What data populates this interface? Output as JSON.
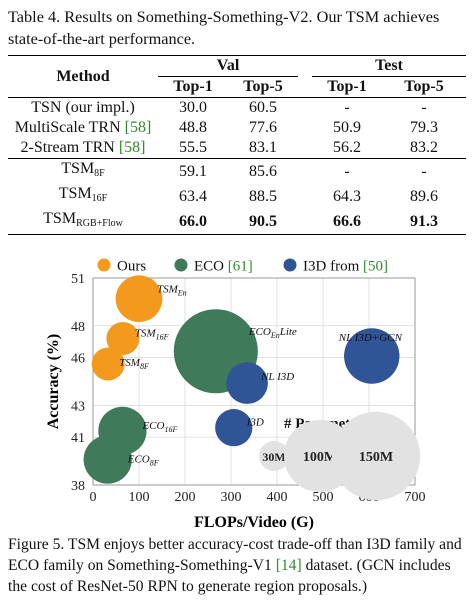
{
  "table": {
    "caption_parts": [
      "Table 4. Results on Something-Something-V2. Our TSM achieves state-of-the-art performance."
    ],
    "headers": {
      "method": "Method",
      "val": "Val",
      "test": "Test",
      "top1": "Top-1",
      "top5": "Top-5"
    },
    "rows": [
      {
        "method": "TSN (our impl.)",
        "ref": "",
        "val1": "30.0",
        "val5": "60.5",
        "test1": "-",
        "test5": "-"
      },
      {
        "method": "MultiScale TRN ",
        "ref": "[58]",
        "val1": "48.8",
        "val5": "77.6",
        "test1": "50.9",
        "test5": "79.3"
      },
      {
        "method": "2-Stream TRN ",
        "ref": "[58]",
        "val1": "55.5",
        "val5": "83.1",
        "test1": "56.2",
        "test5": "83.2"
      },
      {
        "method": "TSM",
        "sub": "8F",
        "val1": "59.1",
        "val5": "85.6",
        "test1": "-",
        "test5": "-"
      },
      {
        "method": "TSM",
        "sub": "16F",
        "val1": "63.4",
        "val5": "88.5",
        "test1": "64.3",
        "test5": "89.6"
      },
      {
        "method": "TSM",
        "sub": "RGB+Flow",
        "val1": "66.0",
        "val5": "90.5",
        "test1": "66.6",
        "test5": "91.3"
      }
    ]
  },
  "chart_data": {
    "type": "scatter",
    "xlabel": "FLOPs/Video (G)",
    "ylabel": "Accuracy (%)",
    "xlim": [
      0,
      700
    ],
    "ylim": [
      38,
      51
    ],
    "xticks": [
      0,
      100,
      200,
      300,
      400,
      500,
      600,
      700
    ],
    "yticks": [
      38,
      41,
      43,
      46,
      48,
      51
    ],
    "grid": true,
    "legend": [
      {
        "name": "Ours",
        "ref": "",
        "color": "#f39a1e"
      },
      {
        "name": "ECO ",
        "ref": "[61]",
        "color": "#3f7a5a"
      },
      {
        "name": "I3D from ",
        "ref": "[50]",
        "color": "#2f5597"
      }
    ],
    "points": [
      {
        "label": "TSM",
        "label_sub": "En",
        "x": 100,
        "y": 49.7,
        "params": 44,
        "group": "Ours"
      },
      {
        "label": "TSM",
        "label_sub": "16F",
        "x": 65,
        "y": 47.2,
        "params": 22,
        "group": "Ours"
      },
      {
        "label": "TSM",
        "label_sub": "8F",
        "x": 33,
        "y": 45.6,
        "params": 22,
        "group": "Ours"
      },
      {
        "label": "ECO",
        "label_sub": "En",
        "label_suffix": "Lite",
        "x": 267,
        "y": 46.4,
        "params": 150,
        "group": "ECO"
      },
      {
        "label": "ECO",
        "label_sub": "16F",
        "x": 64,
        "y": 41.4,
        "params": 47,
        "group": "ECO"
      },
      {
        "label": "ECO",
        "label_sub": "8F",
        "x": 32,
        "y": 39.6,
        "params": 47,
        "group": "ECO"
      },
      {
        "label": "NL I3D",
        "label_sub": "",
        "x": 335,
        "y": 44.4,
        "params": 35,
        "group": "I3D"
      },
      {
        "label": "I3D",
        "label_sub": "",
        "x": 306,
        "y": 41.6,
        "params": 28,
        "group": "I3D"
      },
      {
        "label": "NL I3D+GCN",
        "label_sub": "",
        "x": 606,
        "y": 46.1,
        "params": 62,
        "group": "I3D"
      }
    ],
    "size_legend": {
      "title": "# Parameters",
      "items": [
        {
          "label": "30M",
          "params": 30
        },
        {
          "label": "100M",
          "params": 100
        },
        {
          "label": "150M",
          "params": 150
        }
      ]
    }
  },
  "figure": {
    "caption_parts": [
      "Figure 5. TSM enjoys better accuracy-cost trade-off than I3D family and ECO family on Something-Something-V1 ",
      "[14]",
      " dataset. (GCN includes the cost of ResNet-50 RPN to generate region proposals.)"
    ]
  }
}
